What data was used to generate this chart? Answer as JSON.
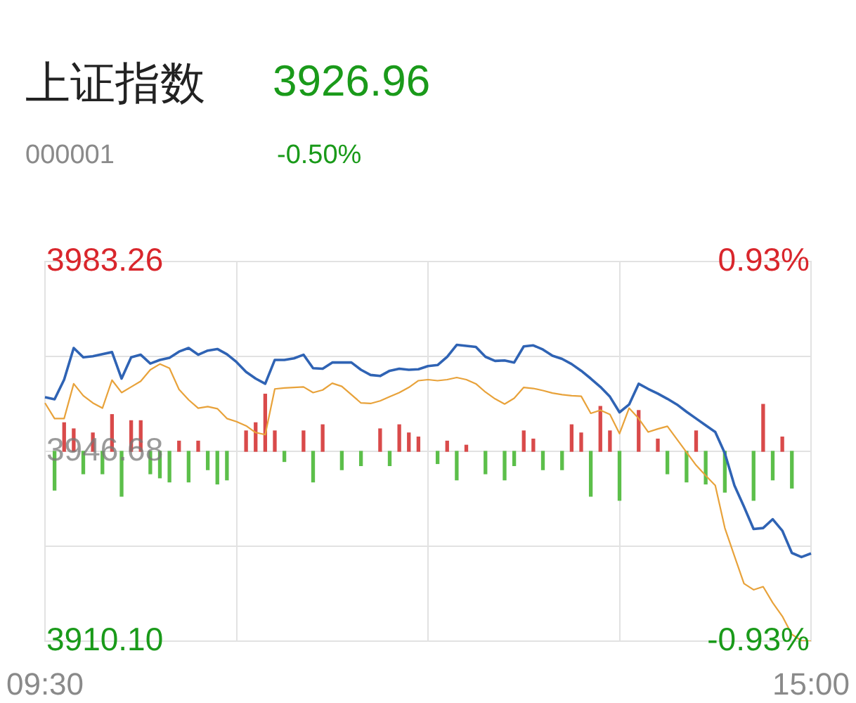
{
  "chart_data": {
    "type": "line",
    "title": "上证指数",
    "subtitle": "000001",
    "annotations": [
      "3926.96",
      "-0.50%"
    ],
    "categories": [
      "09:30",
      null,
      null,
      null,
      null,
      null,
      null,
      null,
      null,
      null,
      null,
      null,
      null,
      null,
      null,
      null,
      null,
      null,
      null,
      null,
      null,
      null,
      null,
      null,
      null,
      null,
      null,
      null,
      null,
      null,
      null,
      null,
      null,
      null,
      null,
      null,
      null,
      null,
      null,
      null,
      null,
      null,
      null,
      null,
      null,
      null,
      null,
      null,
      null,
      null,
      null,
      null,
      null,
      null,
      null,
      null,
      null,
      null,
      null,
      null,
      null,
      null,
      null,
      null,
      null,
      null,
      null,
      null,
      null,
      null,
      null,
      null,
      null,
      null,
      null,
      null,
      null,
      null,
      null,
      null,
      "15:00"
    ],
    "ylim": [
      3910.1,
      3983.26
    ],
    "yticks": [
      {
        "value": 3910.1,
        "label": "3910.10"
      },
      {
        "value": 3928.39,
        "label": null
      },
      {
        "value": 3946.68,
        "label": "3946.68"
      },
      {
        "value": 3964.97,
        "label": null
      },
      {
        "value": 3983.26,
        "label": "3983.26"
      }
    ],
    "y2lim": [
      -0.93,
      0.93
    ],
    "y2ticks": [
      {
        "value": -0.93,
        "label": "-0.93%"
      },
      {
        "value": 0.93,
        "label": "0.93%"
      }
    ],
    "grid": true,
    "marker": "none",
    "line_style": "solid",
    "series": [
      {
        "type": "line",
        "color": "#2f63b4",
        "values": [
          3957.1,
          3956.7,
          3960.5,
          3966.6,
          3964.8,
          3965.0,
          3965.4,
          3965.8,
          3960.7,
          3964.8,
          3965.3,
          3963.6,
          3964.3,
          3964.7,
          3965.9,
          3966.6,
          3965.3,
          3966.1,
          3966.4,
          3965.4,
          3963.9,
          3962.0,
          3960.7,
          3959.7,
          3964.3,
          3964.3,
          3964.6,
          3965.3,
          3962.7,
          3962.6,
          3963.8,
          3963.8,
          3963.8,
          3962.4,
          3961.4,
          3961.2,
          3962.2,
          3962.6,
          3962.4,
          3962.5,
          3963.1,
          3963.3,
          3964.9,
          3967.2,
          3967.0,
          3966.8,
          3964.9,
          3964.1,
          3964.2,
          3963.8,
          3966.9,
          3967.1,
          3966.3,
          3965.1,
          3964.5,
          3963.5,
          3962.2,
          3960.7,
          3959.1,
          3957.2,
          3954.2,
          3955.7,
          3959.7,
          3958.7,
          3957.8,
          3956.8,
          3955.7,
          3954.3,
          3953.0,
          3951.7,
          3950.4,
          3946.3,
          3940.1,
          3936.0,
          3931.7,
          3931.9,
          3933.6,
          3931.4,
          3927.1,
          3926.3,
          3927.0
        ]
      },
      {
        "type": "line",
        "color": "#e8a23a",
        "values": [
          3956.0,
          3953.0,
          3953.0,
          3959.7,
          3957.4,
          3956.0,
          3955.0,
          3960.4,
          3958.0,
          3959.1,
          3960.2,
          3962.4,
          3963.5,
          3962.7,
          3958.6,
          3956.6,
          3955.0,
          3955.3,
          3954.9,
          3953.0,
          3952.4,
          3951.6,
          3950.3,
          3949.9,
          3958.7,
          3958.9,
          3959.0,
          3959.1,
          3958.0,
          3958.5,
          3959.8,
          3959.2,
          3957.6,
          3956.0,
          3955.9,
          3956.4,
          3957.2,
          3958.0,
          3959.0,
          3960.3,
          3960.5,
          3960.3,
          3960.5,
          3960.9,
          3960.5,
          3959.7,
          3958.1,
          3956.8,
          3955.8,
          3956.9,
          3959.0,
          3958.8,
          3958.4,
          3957.9,
          3957.6,
          3957.4,
          3957.3,
          3954.0,
          3954.6,
          3953.8,
          3950.1,
          3955.0,
          3953.0,
          3950.4,
          3951.0,
          3951.5,
          3949.0,
          3946.5,
          3944.0,
          3942.0,
          3940.1,
          3931.9,
          3926.5,
          3921.2,
          3920.0,
          3920.6,
          3917.5,
          3914.9,
          3911.4,
          3910.2,
          3910.1
        ]
      },
      {
        "type": "bar",
        "axis": "y2",
        "values": [
          null,
          -0.19,
          0.14,
          0.11,
          -0.11,
          0.09,
          -0.11,
          0.18,
          -0.22,
          0.15,
          0.15,
          -0.11,
          -0.13,
          -0.15,
          0.05,
          -0.15,
          0.05,
          -0.09,
          -0.16,
          -0.14,
          null,
          0.1,
          0.14,
          0.28,
          0.1,
          -0.05,
          null,
          0.1,
          -0.15,
          0.13,
          null,
          -0.09,
          null,
          -0.07,
          null,
          0.11,
          -0.07,
          0.13,
          0.09,
          0.07,
          null,
          -0.06,
          0.05,
          -0.14,
          0.03,
          null,
          -0.11,
          null,
          -0.14,
          -0.07,
          0.1,
          0.06,
          -0.09,
          null,
          -0.09,
          0.13,
          0.09,
          -0.22,
          0.22,
          0.1,
          -0.24,
          null,
          0.2,
          null,
          0.06,
          -0.11,
          null,
          -0.15,
          0.1,
          -0.16,
          null,
          -0.2,
          null,
          null,
          -0.24,
          0.23,
          -0.14,
          0.07,
          -0.18,
          null,
          null
        ],
        "colors": [
          "#5cbf4a",
          "#5cbf4a",
          "#d94a4a",
          "#d94a4a",
          "#5cbf4a",
          "#d94a4a",
          "#5cbf4a",
          "#d94a4a",
          "#5cbf4a",
          "#d94a4a",
          "#d94a4a",
          "#5cbf4a",
          "#5cbf4a",
          "#5cbf4a",
          "#d94a4a",
          "#5cbf4a",
          "#d94a4a",
          "#5cbf4a",
          "#5cbf4a",
          "#5cbf4a",
          "#5cbf4a",
          "#d94a4a",
          "#d94a4a",
          "#d94a4a",
          "#d94a4a",
          "#5cbf4a",
          "#5cbf4a",
          "#d94a4a",
          "#5cbf4a",
          "#d94a4a",
          "#5cbf4a",
          "#5cbf4a",
          "#5cbf4a",
          "#5cbf4a",
          "#5cbf4a",
          "#d94a4a",
          "#5cbf4a",
          "#d94a4a",
          "#d94a4a",
          "#d94a4a",
          "#5cbf4a",
          "#5cbf4a",
          "#d94a4a",
          "#5cbf4a",
          "#d94a4a",
          "#5cbf4a",
          "#5cbf4a",
          "#5cbf4a",
          "#5cbf4a",
          "#5cbf4a",
          "#d94a4a",
          "#d94a4a",
          "#5cbf4a",
          "#5cbf4a",
          "#5cbf4a",
          "#d94a4a",
          "#d94a4a",
          "#5cbf4a",
          "#d94a4a",
          "#d94a4a",
          "#5cbf4a",
          "#5cbf4a",
          "#d94a4a",
          "#5cbf4a",
          "#d94a4a",
          "#5cbf4a",
          "#5cbf4a",
          "#5cbf4a",
          "#d94a4a",
          "#5cbf4a",
          "#5cbf4a",
          "#5cbf4a",
          "#5cbf4a",
          "#5cbf4a",
          "#5cbf4a",
          "#d94a4a",
          "#5cbf4a",
          "#d94a4a",
          "#5cbf4a",
          "#5cbf4a",
          "#5cbf4a"
        ]
      }
    ]
  }
}
